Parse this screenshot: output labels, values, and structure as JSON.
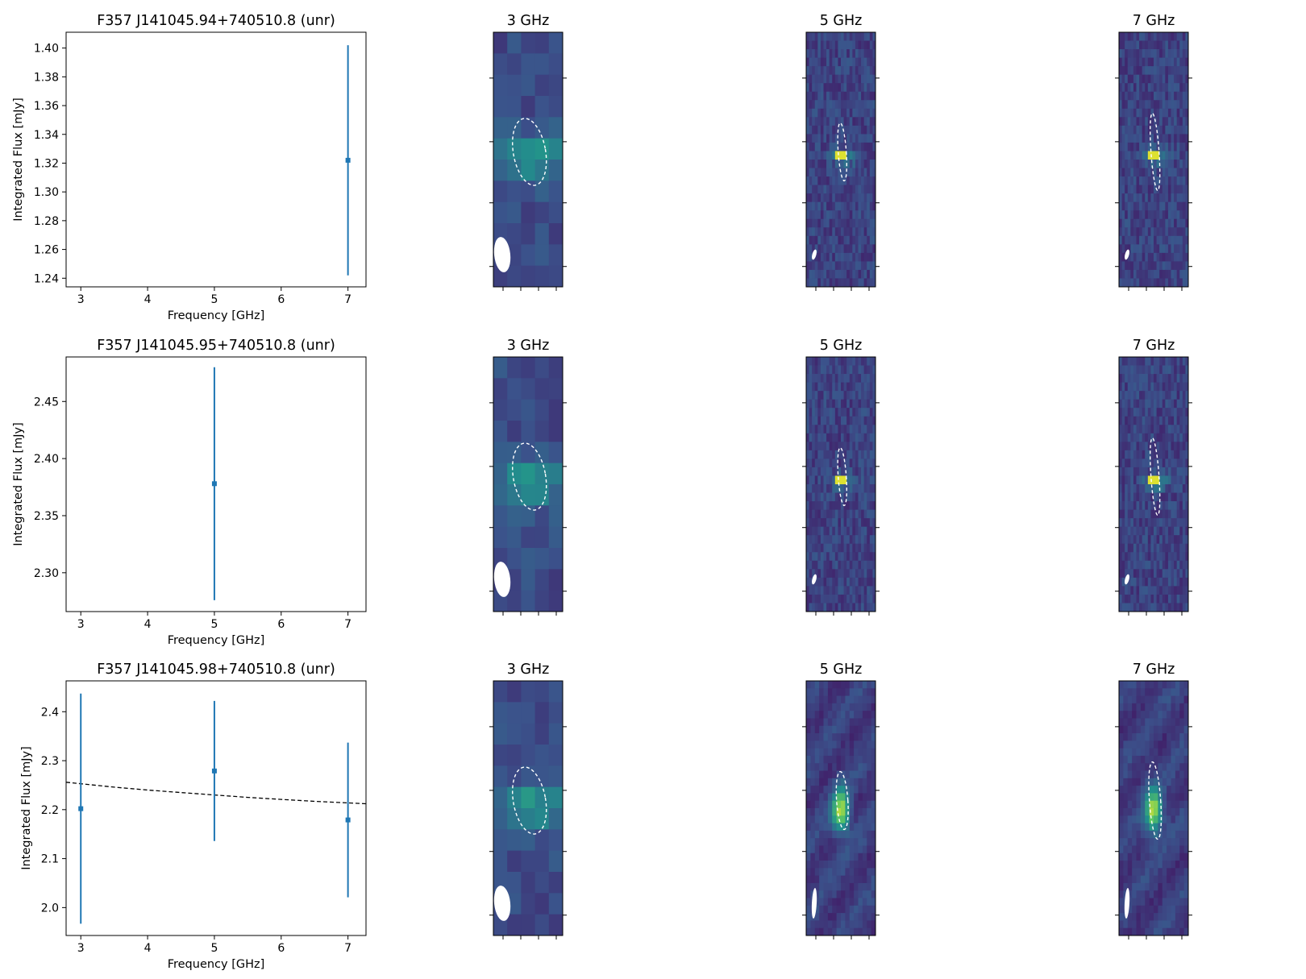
{
  "chart_data": [
    {
      "type": "scatter",
      "title": "F357 J141045.94+740510.8 (unr)",
      "xlabel": "Frequency [GHz]",
      "ylabel": "Integrated Flux [mJy]",
      "xlim": [
        2.78,
        7.27
      ],
      "ylim": [
        1.234,
        1.411
      ],
      "xticks": [
        "3",
        "4",
        "5",
        "6",
        "7"
      ],
      "yticks": [
        "1.24",
        "1.26",
        "1.28",
        "1.30",
        "1.32",
        "1.34",
        "1.36",
        "1.38",
        "1.40"
      ],
      "points": [
        {
          "x": 7,
          "y": 1.322,
          "err": 0.08
        }
      ],
      "color": "#1f77b4"
    },
    {
      "type": "scatter",
      "title": "F357 J141045.95+740510.8 (unr)",
      "xlabel": "Frequency [GHz]",
      "ylabel": "Integrated Flux [mJy]",
      "xlim": [
        2.78,
        7.27
      ],
      "ylim": [
        2.266,
        2.489
      ],
      "xticks": [
        "3",
        "4",
        "5",
        "6",
        "7"
      ],
      "yticks": [
        "2.30",
        "2.35",
        "2.40",
        "2.45"
      ],
      "points": [
        {
          "x": 5,
          "y": 2.378,
          "err": 0.102
        }
      ],
      "color": "#1f77b4"
    },
    {
      "type": "scatter",
      "title": "F357 J141045.98+740510.8 (unr)",
      "xlabel": "Frequency [GHz]",
      "ylabel": "Integrated Flux [mJy]",
      "xlim": [
        2.78,
        7.27
      ],
      "ylim": [
        1.943,
        2.463
      ],
      "xticks": [
        "3",
        "4",
        "5",
        "6",
        "7"
      ],
      "yticks": [
        "2.0",
        "2.1",
        "2.2",
        "2.3",
        "2.4"
      ],
      "points": [
        {
          "x": 3,
          "y": 2.202,
          "err": 0.235
        },
        {
          "x": 5,
          "y": 2.279,
          "err": 0.143
        },
        {
          "x": 7,
          "y": 2.179,
          "err": 0.158
        }
      ],
      "fit": {
        "style": "dashed",
        "color": "#000000",
        "x": [
          2.78,
          3.5,
          4,
          4.5,
          5,
          5.5,
          6,
          6.5,
          7.27
        ],
        "y": [
          2.256,
          2.246,
          2.24,
          2.235,
          2.23,
          2.225,
          2.221,
          2.217,
          2.212
        ]
      },
      "color": "#1f77b4"
    }
  ],
  "image_panels": [
    {
      "row": 0,
      "title": "3 GHz",
      "grid": [
        5,
        12
      ],
      "beam": "large"
    },
    {
      "row": 0,
      "title": "5 GHz",
      "grid": [
        24,
        30
      ],
      "beam": "small"
    },
    {
      "row": 0,
      "title": "7 GHz",
      "grid": [
        24,
        30
      ],
      "beam": "small"
    },
    {
      "row": 1,
      "title": "3 GHz",
      "grid": [
        5,
        12
      ],
      "beam": "large"
    },
    {
      "row": 1,
      "title": "5 GHz",
      "grid": [
        24,
        30
      ],
      "beam": "small"
    },
    {
      "row": 1,
      "title": "7 GHz",
      "grid": [
        24,
        30
      ],
      "beam": "small"
    },
    {
      "row": 2,
      "title": "3 GHz",
      "grid": [
        5,
        12
      ],
      "beam": "large"
    },
    {
      "row": 2,
      "title": "5 GHz",
      "grid": [
        16,
        34
      ],
      "beam": "tall"
    },
    {
      "row": 2,
      "title": "7 GHz",
      "grid": [
        16,
        34
      ],
      "beam": "tall"
    }
  ],
  "colormap": [
    "#440154",
    "#3b528b",
    "#21918c",
    "#5ec962",
    "#fde725"
  ]
}
